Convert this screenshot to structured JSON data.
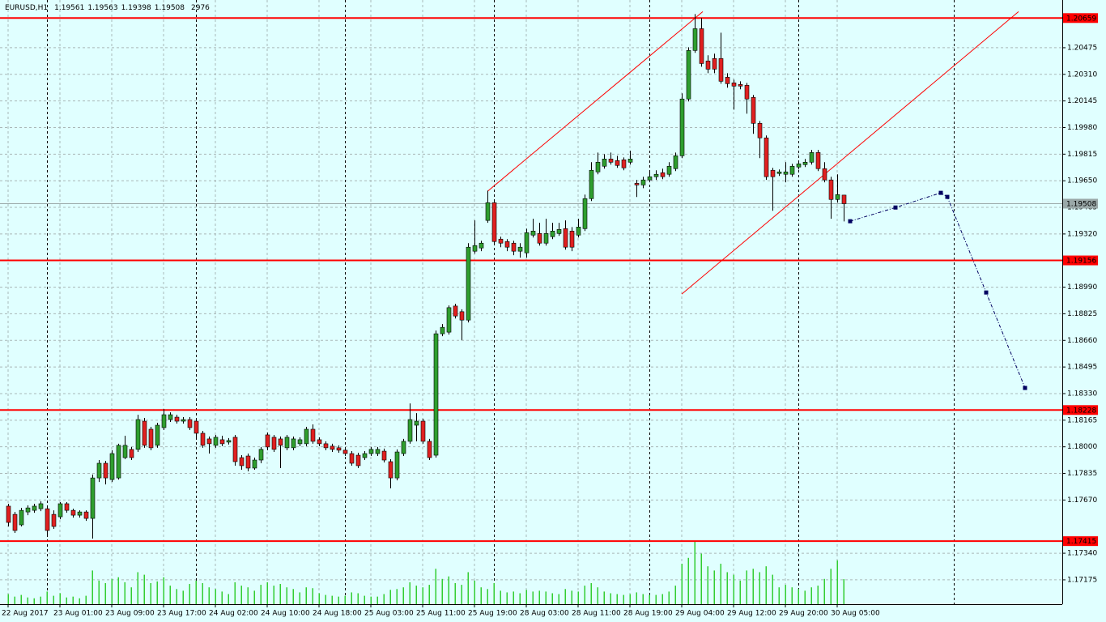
{
  "chart_data": {
    "type": "candlestick",
    "symbol": "EURUSD,H1",
    "categories": [
      "22 Aug 2017",
      null,
      null,
      null,
      null,
      null,
      null,
      null,
      "23 Aug 01:00",
      null,
      null,
      null,
      null,
      null,
      null,
      null,
      "23 Aug 09:00",
      null,
      null,
      null,
      null,
      null,
      null,
      null,
      "23 Aug 17:00",
      null,
      null,
      null,
      null,
      null,
      null,
      null,
      "24 Aug 02:00",
      null,
      null,
      null,
      null,
      null,
      null,
      null,
      "24 Aug 10:00",
      null,
      null,
      null,
      null,
      null,
      null,
      null,
      "24 Aug 18:00",
      null,
      null,
      null,
      null,
      null,
      null,
      null,
      "25 Aug 03:00",
      null,
      null,
      null,
      null,
      null,
      null,
      null,
      "25 Aug 11:00",
      null,
      null,
      null,
      null,
      null,
      null,
      null,
      "25 Aug 19:00",
      null,
      null,
      null,
      null,
      null,
      null,
      null,
      "28 Aug 03:00",
      null,
      null,
      null,
      null,
      null,
      null,
      null,
      "28 Aug 11:00",
      null,
      null,
      null,
      null,
      null,
      null,
      null,
      "28 Aug 19:00",
      null,
      null,
      null,
      null,
      null,
      null,
      null,
      "29 Aug 04:00",
      null,
      null,
      null,
      null,
      null,
      null,
      null,
      "29 Aug 12:00",
      null,
      null,
      null,
      null,
      null,
      null,
      null,
      "29 Aug 20:00",
      null,
      null,
      null,
      null,
      null,
      null,
      null,
      "30 Aug 05:00",
      null
    ],
    "open": [
      1.17632,
      1.17581,
      1.17516,
      1.17596,
      1.17606,
      1.17616,
      1.17616,
      1.17581,
      1.17566,
      1.17647,
      1.17606,
      1.17576,
      1.17596,
      1.17556,
      1.17807,
      1.17898,
      1.17797,
      1.17807,
      1.17933,
      1.17984,
      1.17984,
      1.18159,
      1.18109,
      1.18009,
      1.18119,
      1.18169,
      1.18184,
      1.18159,
      1.18169,
      1.18159,
      1.18084,
      1.18049,
      1.18009,
      1.18044,
      1.18029,
      1.18059,
      1.17933,
      1.17943,
      1.17868,
      1.17918,
      1.18074,
      1.18059,
      1.18049,
      1.17994,
      1.17994,
      1.18019,
      1.18019,
      1.18109,
      1.18044,
      1.18019,
      1.18004,
      1.17994,
      1.17979,
      1.17958,
      1.17948,
      1.17933,
      1.17958,
      1.17958,
      1.17973,
      1.17908,
      1.17807,
      1.17958,
      1.18034,
      1.18134,
      1.18159,
      1.18034,
      1.17948,
      1.18701,
      1.18711,
      1.18873,
      1.18838,
      1.18786,
      1.19213,
      1.19233,
      1.19404,
      1.19514,
      1.19288,
      1.19273,
      1.19263,
      1.19213,
      1.19203,
      1.19313,
      1.19323,
      1.19263,
      1.19303,
      1.19323,
      1.19353,
      1.19338,
      1.19313,
      1.19353,
      1.19539,
      1.19705,
      1.1974,
      1.19785,
      1.19775,
      1.1978,
      1.19765,
      1.19634,
      1.19624,
      1.19655,
      1.19675,
      1.197,
      1.1969,
      1.19725,
      1.19805,
      1.20157,
      1.20458,
      1.20593,
      1.20393,
      1.20408,
      1.20408,
      1.20292,
      1.20257,
      1.20247,
      1.20242,
      1.20167,
      1.20006,
      1.19916,
      1.19715,
      1.19695,
      1.1969,
      1.1969,
      1.19735,
      1.1975,
      1.19765,
      1.19825,
      1.19725,
      1.19655,
      1.19534,
      1.19561
    ],
    "high": [
      1.17647,
      1.17596,
      1.17621,
      1.17637,
      1.17647,
      1.17662,
      1.17626,
      1.17606,
      1.17657,
      1.17657,
      1.17616,
      1.17606,
      1.17606,
      1.17828,
      1.17918,
      1.17913,
      1.17979,
      1.18019,
      1.18069,
      1.17999,
      1.18199,
      1.18179,
      1.18124,
      1.18149,
      1.18234,
      1.18214,
      1.18199,
      1.18184,
      1.18184,
      1.18174,
      1.18099,
      1.18064,
      1.18074,
      1.18069,
      1.18054,
      1.18074,
      1.17948,
      1.17958,
      1.17933,
      1.17999,
      1.18089,
      1.18074,
      1.18064,
      1.18074,
      1.18064,
      1.18059,
      1.18124,
      1.18139,
      1.18059,
      1.18034,
      1.18019,
      1.18009,
      1.17994,
      1.17973,
      1.17963,
      1.17973,
      1.17999,
      1.17999,
      1.17989,
      1.17923,
      1.17984,
      1.18049,
      1.18269,
      1.18209,
      1.18174,
      1.18049,
      1.18721,
      1.18761,
      1.18877,
      1.18887,
      1.18853,
      1.19263,
      1.19404,
      1.19278,
      1.19589,
      1.19529,
      1.19303,
      1.19288,
      1.19278,
      1.19263,
      1.19353,
      1.19414,
      1.19389,
      1.19414,
      1.19389,
      1.19389,
      1.19404,
      1.19363,
      1.19414,
      1.19564,
      1.19765,
      1.19825,
      1.19815,
      1.19825,
      1.19805,
      1.19795,
      1.19837,
      1.19655,
      1.19675,
      1.19705,
      1.19715,
      1.19725,
      1.19765,
      1.19825,
      1.20192,
      1.20478,
      1.20684,
      1.20659,
      1.20428,
      1.20438,
      1.20568,
      1.20317,
      1.20277,
      1.20267,
      1.20257,
      1.20182,
      1.20021,
      1.19931,
      1.1973,
      1.1972,
      1.19765,
      1.19755,
      1.19775,
      1.19785,
      1.19842,
      1.19842,
      1.19765,
      1.19675,
      1.1969,
      1.19563
    ],
    "low": [
      1.17506,
      1.17466,
      1.17506,
      1.17576,
      1.17591,
      1.17601,
      1.17456,
      1.17491,
      1.17551,
      1.17591,
      1.17561,
      1.17561,
      1.17541,
      1.17431,
      1.17782,
      1.17767,
      1.17782,
      1.17797,
      1.17923,
      1.17918,
      1.17968,
      1.17994,
      1.17979,
      1.17994,
      1.18104,
      1.18154,
      1.18144,
      1.18144,
      1.18104,
      1.18059,
      1.17994,
      1.17958,
      1.17994,
      1.18004,
      1.18014,
      1.17883,
      1.17858,
      1.17848,
      1.17858,
      1.17898,
      1.17979,
      1.17968,
      1.17868,
      1.17979,
      1.17979,
      1.18004,
      1.18004,
      1.18019,
      1.18004,
      1.17979,
      1.17968,
      1.17963,
      1.17943,
      1.17883,
      1.17868,
      1.17918,
      1.17943,
      1.17943,
      1.17903,
      1.17742,
      1.17792,
      1.17943,
      1.18019,
      1.18034,
      1.18019,
      1.17918,
      1.17933,
      1.18686,
      1.18696,
      1.18796,
      1.18661,
      1.18771,
      1.19198,
      1.19213,
      1.19389,
      1.19258,
      1.19238,
      1.19213,
      1.19188,
      1.19173,
      1.19173,
      1.19298,
      1.19248,
      1.19248,
      1.19288,
      1.19308,
      1.19223,
      1.19213,
      1.19298,
      1.19338,
      1.19524,
      1.1969,
      1.19725,
      1.1975,
      1.1973,
      1.19715,
      1.1975,
      1.19549,
      1.19604,
      1.1964,
      1.19655,
      1.1966,
      1.19675,
      1.1971,
      1.1979,
      1.20142,
      1.20443,
      1.20357,
      1.20317,
      1.20317,
      1.20252,
      1.20227,
      1.20091,
      1.20217,
      1.20066,
      1.19941,
      1.1979,
      1.19655,
      1.19464,
      1.1968,
      1.1964,
      1.19675,
      1.1972,
      1.19735,
      1.1975,
      1.1971,
      1.1964,
      1.19414,
      1.19514,
      1.19398
    ],
    "close": [
      1.17531,
      1.17481,
      1.17606,
      1.17621,
      1.17632,
      1.17647,
      1.17481,
      1.17506,
      1.17647,
      1.17606,
      1.17576,
      1.17596,
      1.17556,
      1.17807,
      1.17898,
      1.17807,
      1.17958,
      1.18009,
      1.18009,
      1.17933,
      1.18169,
      1.18009,
      1.17994,
      1.18134,
      1.18199,
      1.18199,
      1.18159,
      1.18169,
      1.18119,
      1.18084,
      1.18009,
      1.18019,
      1.18059,
      1.18019,
      1.18039,
      1.17908,
      1.17883,
      1.17868,
      1.17918,
      1.17984,
      1.17999,
      1.17984,
      1.18009,
      1.18059,
      1.18049,
      1.18044,
      1.18109,
      1.18034,
      1.18019,
      1.17994,
      1.17984,
      1.17979,
      1.17958,
      1.17898,
      1.17883,
      1.17958,
      1.17984,
      1.17984,
      1.17918,
      1.17807,
      1.17968,
      1.18034,
      1.18169,
      1.18159,
      1.18034,
      1.17933,
      1.18701,
      1.18741,
      1.18863,
      1.18811,
      1.18786,
      1.19238,
      1.19248,
      1.19263,
      1.19514,
      1.19273,
      1.19263,
      1.19238,
      1.19213,
      1.19238,
      1.19328,
      1.19338,
      1.19263,
      1.19323,
      1.19338,
      1.19348,
      1.19238,
      1.19238,
      1.19363,
      1.19539,
      1.19715,
      1.19765,
      1.19785,
      1.19765,
      1.19745,
      1.1973,
      1.19785,
      1.19624,
      1.19655,
      1.19675,
      1.1969,
      1.19675,
      1.1974,
      1.19805,
      1.20157,
      1.20458,
      1.20593,
      1.20377,
      1.20342,
      1.20342,
      1.20267,
      1.20252,
      1.20237,
      1.20237,
      1.20157,
      1.20006,
      1.19916,
      1.19675,
      1.19675,
      1.19705,
      1.19705,
      1.1974,
      1.19755,
      1.19765,
      1.19825,
      1.19725,
      1.19655,
      1.19534,
      1.19564,
      1.19508
    ],
    "volume": [
      1200,
      900,
      1100,
      800,
      700,
      900,
      1500,
      1000,
      1300,
      800,
      900,
      700,
      1000,
      4000,
      2800,
      2500,
      3000,
      3200,
      2600,
      2000,
      3800,
      3500,
      2500,
      2700,
      3200,
      2200,
      1800,
      1600,
      2400,
      2800,
      2500,
      2000,
      1800,
      1500,
      1200,
      2600,
      2200,
      2000,
      1600,
      2300,
      2600,
      2200,
      2400,
      2000,
      1800,
      1400,
      2000,
      1900,
      1300,
      1100,
      1000,
      900,
      1000,
      1400,
      1300,
      1000,
      900,
      900,
      1200,
      1700,
      1800,
      2000,
      2600,
      2200,
      2000,
      2300,
      4200,
      3000,
      3300,
      2500,
      2300,
      3800,
      2800,
      2000,
      1800,
      2500,
      1600,
      1400,
      1500,
      1300,
      1700,
      1500,
      1600,
      1500,
      1300,
      1200,
      1800,
      1600,
      1500,
      2200,
      2500,
      2000,
      1500,
      1300,
      1200,
      1100,
      1200,
      1400,
      1200,
      1100,
      1100,
      1200,
      1500,
      2200,
      4800,
      5500,
      7500,
      6000,
      4500,
      4000,
      4800,
      3800,
      3500,
      2800,
      4000,
      4200,
      3800,
      4500,
      3500,
      2000,
      2300,
      2000,
      1800,
      1600,
      2000,
      2200,
      3000,
      4200,
      5200,
      2976
    ],
    "up_color": "#2e9e2e",
    "down_color": "#e02020",
    "volume_color": "#32cd32",
    "xlim": [
      -1.25,
      162.75
    ],
    "ylim": [
      1.17024,
      1.20771
    ],
    "yticks": [
      1.20475,
      {
        "value": 1.2031,
        "label": "1.20310"
      },
      1.20145,
      {
        "value": 1.1998,
        "label": "1.19980"
      },
      1.19815,
      {
        "value": 1.1965,
        "label": "1.19650"
      },
      1.19485,
      {
        "value": 1.1932,
        "label": "1.19320"
      },
      {
        "value": 1.1899,
        "label": "1.18990"
      },
      1.18825,
      {
        "value": 1.1866,
        "label": "1.18660"
      },
      1.18495,
      {
        "value": 1.1833,
        "label": "1.18330"
      },
      1.18165,
      {
        "value": 1.18,
        "label": "1.18000"
      },
      1.17835,
      {
        "value": 1.1767,
        "label": "1.17670"
      },
      {
        "value": 1.1734,
        "label": "1.17340"
      },
      1.17175
    ],
    "grid": true,
    "levels": [
      1.20659,
      1.19156,
      1.18228,
      1.17415
    ],
    "level_color": "#ff0000",
    "bid_color": "#9aa8a8",
    "trendlines": [
      {
        "x": [
          74,
          107.25
        ],
        "values": [
          1.19584,
          1.20699
        ],
        "color": "#ff0000"
      },
      {
        "x": [
          104,
          156
        ],
        "values": [
          1.18947,
          1.20699
        ],
        "color": "#ff0000"
      }
    ],
    "forecast": {
      "x": [
        130,
        137,
        144,
        145,
        151,
        157
      ],
      "values": [
        1.19399,
        1.19484,
        1.19575,
        1.1955,
        1.18957,
        1.18365
      ],
      "color": "#000060"
    },
    "period_separators": [
      6,
      29,
      52,
      75,
      99,
      122,
      146
    ]
  }
}
